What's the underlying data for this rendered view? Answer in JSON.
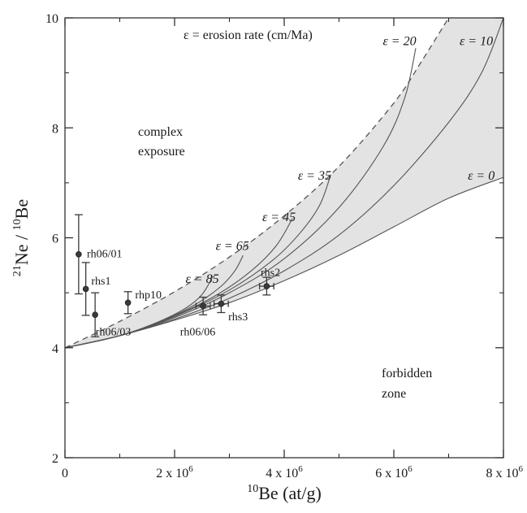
{
  "chart_data": {
    "type": "scatter",
    "title": "",
    "xlabel": "",
    "ylabel": "",
    "xlabel_parts": {
      "sup": "10",
      "text": "Be (at/g)"
    },
    "ylabel_parts": {
      "sup1": "21",
      "mid": "Ne / ",
      "sup2": "10",
      "end": "Be"
    },
    "xlim": [
      0,
      8000000
    ],
    "ylim": [
      2,
      10
    ],
    "x_ticks": [
      {
        "value": 0,
        "label": "0",
        "exp": ""
      },
      {
        "value": 2000000,
        "label": "2 x 10",
        "exp": "6"
      },
      {
        "value": 4000000,
        "label": "4 x 10",
        "exp": "6"
      },
      {
        "value": 6000000,
        "label": "6 x 10",
        "exp": "6"
      },
      {
        "value": 8000000,
        "label": "8 x 10",
        "exp": "6"
      }
    ],
    "y_ticks": [
      {
        "value": 2,
        "label": "2"
      },
      {
        "value": 4,
        "label": "4"
      },
      {
        "value": 6,
        "label": "6"
      },
      {
        "value": 8,
        "label": "8"
      },
      {
        "value": 10,
        "label": "10"
      }
    ],
    "curves": [
      {
        "erosion": 0,
        "label": "ε = 0",
        "points": [
          [
            0,
            4.0
          ],
          [
            1000000,
            4.22
          ],
          [
            2000000,
            4.5
          ],
          [
            3000000,
            4.82
          ],
          [
            4000000,
            5.22
          ],
          [
            5000000,
            5.68
          ],
          [
            6000000,
            6.2
          ],
          [
            7000000,
            6.72
          ],
          [
            8000000,
            7.1
          ]
        ]
      },
      {
        "erosion": 10,
        "label": "ε = 10",
        "points": [
          [
            0,
            4.0
          ],
          [
            1000000,
            4.22
          ],
          [
            2000000,
            4.52
          ],
          [
            3000000,
            4.9
          ],
          [
            4000000,
            5.4
          ],
          [
            5000000,
            6.05
          ],
          [
            6000000,
            6.95
          ],
          [
            7000000,
            8.1
          ],
          [
            7600000,
            9.0
          ],
          [
            8000000,
            10.0
          ]
        ]
      },
      {
        "erosion": 20,
        "label": "ε = 20",
        "points": [
          [
            0,
            4.0
          ],
          [
            1000000,
            4.22
          ],
          [
            2000000,
            4.55
          ],
          [
            3000000,
            5.0
          ],
          [
            4000000,
            5.62
          ],
          [
            5000000,
            6.55
          ],
          [
            5800000,
            7.65
          ],
          [
            6200000,
            8.55
          ],
          [
            6400000,
            9.45
          ]
        ]
      },
      {
        "erosion": 35,
        "label": "ε = 35",
        "points": [
          [
            0,
            4.0
          ],
          [
            1000000,
            4.22
          ],
          [
            2000000,
            4.57
          ],
          [
            3000000,
            5.05
          ],
          [
            3800000,
            5.6
          ],
          [
            4300000,
            6.1
          ],
          [
            4650000,
            6.6
          ],
          [
            4850000,
            7.15
          ]
        ]
      },
      {
        "erosion": 45,
        "label": "ε = 45",
        "points": [
          [
            0,
            4.0
          ],
          [
            1000000,
            4.22
          ],
          [
            2000000,
            4.58
          ],
          [
            2800000,
            4.98
          ],
          [
            3400000,
            5.4
          ],
          [
            3850000,
            5.85
          ],
          [
            4150000,
            6.35
          ]
        ]
      },
      {
        "erosion": 65,
        "label": "ε = 65",
        "points": [
          [
            0,
            4.0
          ],
          [
            1000000,
            4.22
          ],
          [
            1800000,
            4.5
          ],
          [
            2400000,
            4.8
          ],
          [
            2850000,
            5.12
          ],
          [
            3100000,
            5.4
          ],
          [
            3250000,
            5.68
          ]
        ]
      },
      {
        "erosion": 85,
        "label": "ε = 85",
        "points": [
          [
            0,
            4.0
          ],
          [
            1000000,
            4.22
          ],
          [
            1700000,
            4.47
          ],
          [
            2200000,
            4.72
          ],
          [
            2500000,
            4.97
          ],
          [
            2700000,
            5.3
          ]
        ]
      }
    ],
    "steady_state_curve": {
      "style": "dashed",
      "points": [
        [
          0,
          4.0
        ],
        [
          1000000,
          4.48
        ],
        [
          2000000,
          5.02
        ],
        [
          3000000,
          5.65
        ],
        [
          4000000,
          6.4
        ],
        [
          5000000,
          7.3
        ],
        [
          6000000,
          8.45
        ],
        [
          6500000,
          9.2
        ],
        [
          7000000,
          10.0
        ]
      ]
    },
    "eps_labels": [
      {
        "text": "ε = 85",
        "x": 2200000,
        "y": 5.25
      },
      {
        "text": "ε = 65",
        "x": 2750000,
        "y": 5.85
      },
      {
        "text": "ε = 45",
        "x": 3600000,
        "y": 6.38
      },
      {
        "text": "ε = 35",
        "x": 4250000,
        "y": 7.13
      },
      {
        "text": "ε = 20",
        "x": 5800000,
        "y": 9.58
      },
      {
        "text": "ε = 10",
        "x": 7200000,
        "y": 9.58
      },
      {
        "text": "ε = 0",
        "x": 7350000,
        "y": 7.13
      }
    ],
    "samples": [
      {
        "name": "rh06/01",
        "x": 250000,
        "y": 5.7,
        "yerr": 0.72,
        "xerr": 0,
        "label_x": 400000,
        "label_y": 5.72
      },
      {
        "name": "rhs1",
        "x": 380000,
        "y": 5.07,
        "yerr": 0.48,
        "xerr": 0,
        "label_x": 480000,
        "label_y": 5.22
      },
      {
        "name": "rh06/03",
        "x": 550000,
        "y": 4.6,
        "yerr": 0.4,
        "xerr": 0,
        "label_x": 560000,
        "label_y": 4.3
      },
      {
        "name": "rhp10",
        "x": 1150000,
        "y": 4.82,
        "yerr": 0.2,
        "xerr": 0,
        "label_x": 1280000,
        "label_y": 4.97
      },
      {
        "name": "rh06/06",
        "x": 2520000,
        "y": 4.76,
        "yerr": 0.16,
        "xerr": 130000,
        "label_x": 2100000,
        "label_y": 4.3
      },
      {
        "name": "rhs3",
        "x": 2850000,
        "y": 4.8,
        "yerr": 0.16,
        "xerr": 130000,
        "label_x": 2980000,
        "label_y": 4.57
      },
      {
        "name": "rhs2",
        "x": 3680000,
        "y": 5.12,
        "yerr": 0.16,
        "xerr": 130000,
        "label_x": 3570000,
        "label_y": 5.38
      }
    ],
    "annotations": {
      "erosion_def": "ε = erosion rate (cm/Ma)",
      "complex_1": "complex",
      "complex_2": "exposure",
      "forbidden_1": "forbidden",
      "forbidden_2": "zone"
    },
    "colors": {
      "shade": "#e3e3e3",
      "line": "#555555",
      "axis": "#222222",
      "marker": "#3a3a3a"
    },
    "grid": false,
    "legend": "none"
  }
}
